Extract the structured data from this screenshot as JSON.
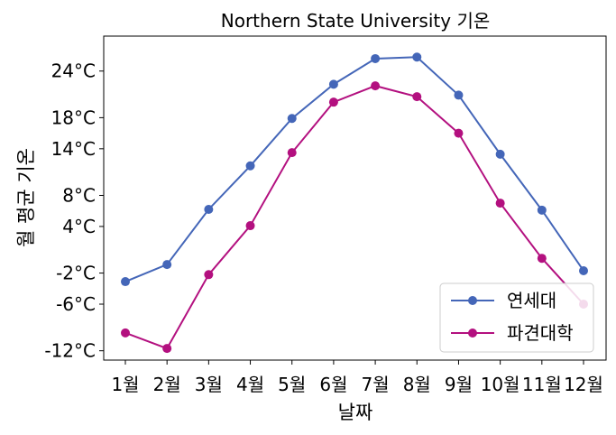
{
  "chart_data": {
    "type": "line",
    "title": "Northern State University 기온",
    "xlabel": "날짜",
    "ylabel": "월 평균 기온",
    "categories": [
      "1월",
      "2월",
      "3월",
      "4월",
      "5월",
      "6월",
      "7월",
      "8월",
      "9월",
      "10월",
      "11월",
      "12월"
    ],
    "yticks": [
      {
        "value": -12,
        "label": "-12°C"
      },
      {
        "value": -6,
        "label": "-6°C"
      },
      {
        "value": -2,
        "label": "-2°C"
      },
      {
        "value": 4,
        "label": "4°C"
      },
      {
        "value": 8,
        "label": "8°C"
      },
      {
        "value": 14,
        "label": "14°C"
      },
      {
        "value": 18,
        "label": "18°C"
      },
      {
        "value": 24,
        "label": "24°C"
      }
    ],
    "ylim": [
      -13.2,
      28.5
    ],
    "grid": false,
    "legend_position": "lower right",
    "series": [
      {
        "name": "연세대",
        "color": "#4466b8",
        "values": [
          -3.1,
          -0.9,
          6.2,
          11.8,
          17.9,
          22.3,
          25.6,
          25.8,
          20.9,
          13.3,
          6.1,
          -1.7
        ]
      },
      {
        "name": "파견대학",
        "color": "#b3107f",
        "values": [
          -9.7,
          -11.7,
          -2.2,
          4.1,
          13.5,
          20.0,
          22.1,
          20.7,
          16.0,
          7.0,
          -0.1,
          -6.0
        ]
      }
    ]
  }
}
